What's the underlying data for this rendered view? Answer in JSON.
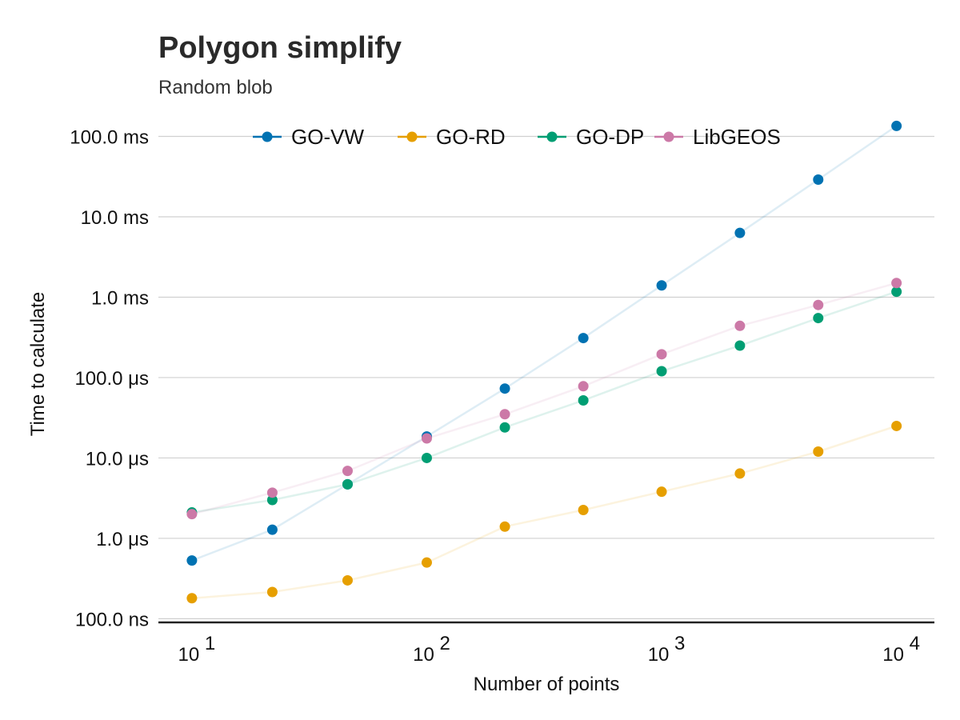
{
  "chart_data": {
    "type": "scatter",
    "title": "Polygon simplify",
    "subtitle": "Random blob",
    "xlabel": "Number of points",
    "ylabel": "Time to calculate",
    "x_scale": "log10",
    "y_scale": "log10",
    "xlim": [
      7.2,
      14500
    ],
    "ylim_seconds": [
      9e-08,
      0.16
    ],
    "x_ticks": [
      {
        "value": 10,
        "base": "10",
        "exp": "1"
      },
      {
        "value": 100,
        "base": "10",
        "exp": "2"
      },
      {
        "value": 1000,
        "base": "10",
        "exp": "3"
      },
      {
        "value": 10000,
        "base": "10",
        "exp": "4"
      }
    ],
    "y_ticks": [
      {
        "value": 1e-07,
        "label": "100.0 ns"
      },
      {
        "value": 1e-06,
        "label": "1.0 μs"
      },
      {
        "value": 1e-05,
        "label": "10.0 μs"
      },
      {
        "value": 0.0001,
        "label": "100.0 μs"
      },
      {
        "value": 0.001,
        "label": "1.0 ms"
      },
      {
        "value": 0.01,
        "label": "10.0 ms"
      },
      {
        "value": 0.1,
        "label": "100.0 ms"
      }
    ],
    "grid": "horizontal",
    "legend_position": "top",
    "x": [
      10,
      22,
      46,
      100,
      215,
      464,
      1000,
      2154,
      4642,
      10000
    ],
    "series": [
      {
        "name": "GO-VW",
        "color": "#0072B2",
        "values_seconds": [
          5.3e-07,
          1.28e-06,
          4.7e-06,
          1.85e-05,
          7.3e-05,
          0.00031,
          0.0014,
          0.0063,
          0.029,
          0.135
        ]
      },
      {
        "name": "GO-RD",
        "color": "#E69F00",
        "values_seconds": [
          1.8e-07,
          2.15e-07,
          3e-07,
          5e-07,
          1.4e-06,
          2.25e-06,
          3.8e-06,
          6.4e-06,
          1.2e-05,
          2.5e-05
        ]
      },
      {
        "name": "GO-DP",
        "color": "#009E73",
        "values_seconds": [
          2.1e-06,
          3e-06,
          4.7e-06,
          1e-05,
          2.4e-05,
          5.2e-05,
          0.00012,
          0.00025,
          0.00055,
          0.00117
        ]
      },
      {
        "name": "LibGEOS",
        "color": "#CC79A7",
        "values_seconds": [
          2e-06,
          3.7e-06,
          6.9e-06,
          1.75e-05,
          3.5e-05,
          7.8e-05,
          0.000195,
          0.00044,
          0.0008,
          0.0015
        ]
      }
    ]
  }
}
